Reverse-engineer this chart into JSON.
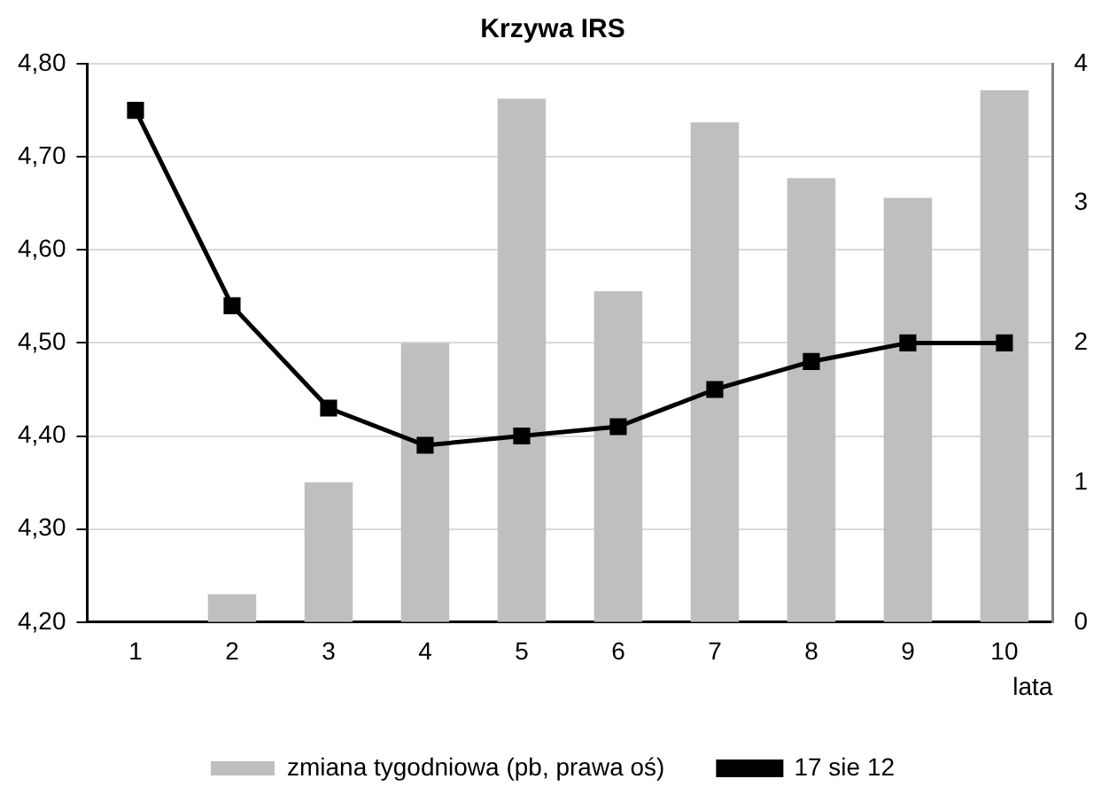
{
  "chart_data": {
    "type": "bar",
    "title": "Krzywa IRS",
    "xlabel": "lata",
    "categories": [
      "1",
      "2",
      "3",
      "4",
      "5",
      "6",
      "7",
      "8",
      "9",
      "10"
    ],
    "series": [
      {
        "name": "zmiana tygodniowa (pb, prawa oś)",
        "axis": "y2",
        "color": "#bfbfbf",
        "values": [
          0,
          0.2,
          1.0,
          2.0,
          3.75,
          2.37,
          3.58,
          3.18,
          3.04,
          3.81
        ]
      },
      {
        "name": "17 sie 12",
        "type": "line",
        "axis": "y",
        "color": "#000000",
        "marker": "square",
        "line_style": "solid",
        "values": [
          4.75,
          4.54,
          4.43,
          4.39,
          4.4,
          4.41,
          4.45,
          4.48,
          4.5,
          4.5
        ]
      }
    ],
    "ylim": [
      4.2,
      4.8
    ],
    "yticks": [
      {
        "value": 4.2,
        "label": "4,20"
      },
      {
        "value": 4.3,
        "label": "4,30"
      },
      {
        "value": 4.4,
        "label": "4,40"
      },
      {
        "value": 4.5,
        "label": "4,50"
      },
      {
        "value": 4.6,
        "label": "4,60"
      },
      {
        "value": 4.7,
        "label": "4,70"
      },
      {
        "value": 4.8,
        "label": "4,80"
      }
    ],
    "y2lim": [
      0,
      4
    ],
    "y2ticks": [
      0,
      1,
      2,
      3,
      4
    ],
    "grid": "y",
    "legend": "bottom"
  }
}
